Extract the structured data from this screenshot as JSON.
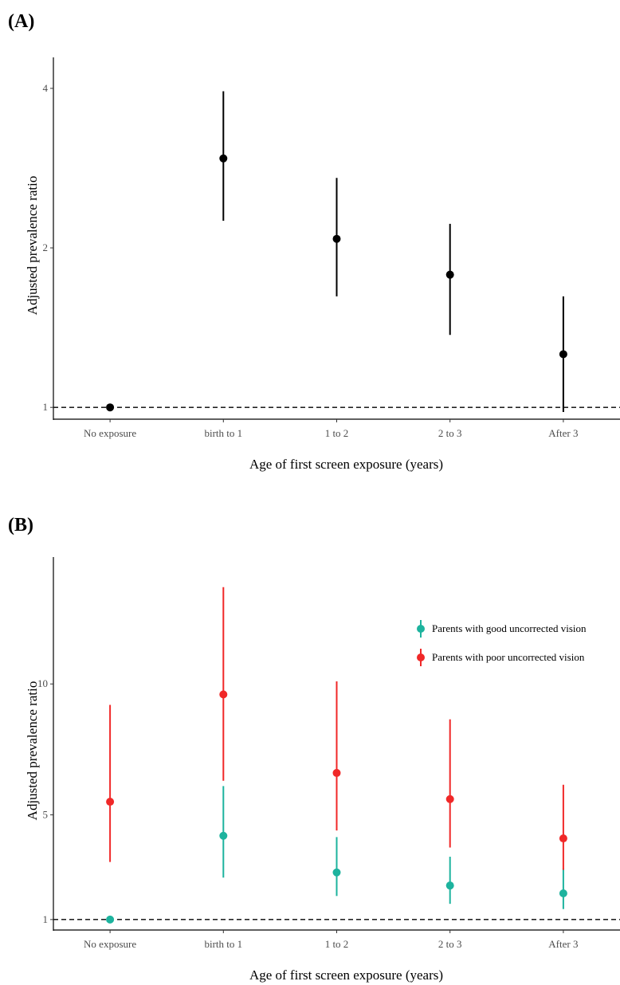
{
  "chart_data": [
    {
      "panel": "(A)",
      "type": "scatter",
      "categories": [
        "No exposure",
        "birth to 1",
        "1 to 2",
        "2 to 3",
        "After 3"
      ],
      "xlabel": "Age of first screen exposure (years)",
      "ylabel": "Adjusted prevalence ratio",
      "yscale": "log",
      "yticks": [
        1,
        2,
        4
      ],
      "ylim": [
        0.95,
        4.3
      ],
      "reference_line": 1,
      "series": [
        {
          "color": "#000000",
          "values": [
            1.0,
            2.95,
            2.08,
            1.78,
            1.26
          ],
          "lower": [
            1.0,
            2.25,
            1.62,
            1.37,
            0.98
          ],
          "upper": [
            1.0,
            3.95,
            2.71,
            2.22,
            1.62
          ]
        }
      ]
    },
    {
      "panel": "(B)",
      "type": "scatter",
      "categories": [
        "No exposure",
        "birth to 1",
        "1 to 2",
        "2 to 3",
        "After 3"
      ],
      "xlabel": "Age of first screen exposure (years)",
      "ylabel": "Adjusted prevalence ratio",
      "yscale": "linear",
      "yticks": [
        1,
        5,
        10
      ],
      "ylim": [
        0.6,
        14.3
      ],
      "reference_line": 1,
      "legend_position": "top-right",
      "series": [
        {
          "name": "Parents with good uncorrected vision",
          "color": "#1DB39E",
          "values": [
            1.0,
            4.2,
            2.8,
            2.3,
            2.0
          ],
          "lower": [
            1.0,
            2.6,
            1.9,
            1.6,
            1.4
          ],
          "upper": [
            1.0,
            6.1,
            4.15,
            3.4,
            2.95
          ]
        },
        {
          "name": "Parents with poor uncorrected vision",
          "color": "#F02828",
          "values": [
            5.5,
            9.6,
            6.6,
            5.6,
            4.1
          ],
          "lower": [
            3.2,
            6.3,
            4.4,
            3.75,
            2.9
          ],
          "upper": [
            9.2,
            13.7,
            10.1,
            8.65,
            6.15
          ]
        }
      ]
    }
  ]
}
